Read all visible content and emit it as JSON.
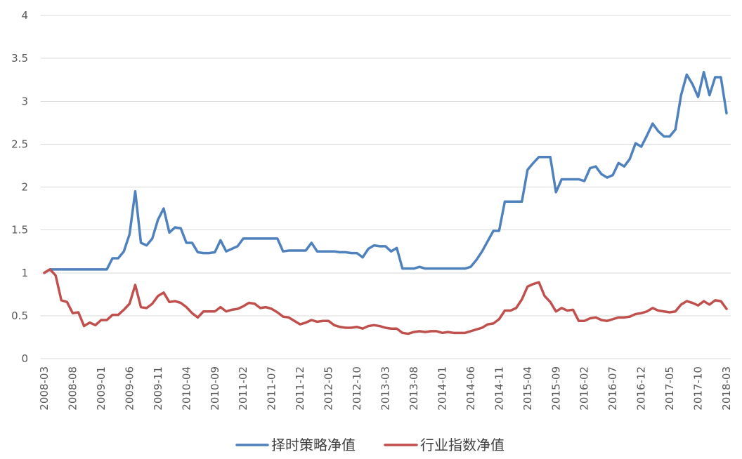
{
  "chart_data": {
    "type": "line",
    "x": [
      "2008-03",
      "2008-04",
      "2008-05",
      "2008-06",
      "2008-07",
      "2008-08",
      "2008-09",
      "2008-10",
      "2008-11",
      "2008-12",
      "2009-01",
      "2009-02",
      "2009-03",
      "2009-04",
      "2009-05",
      "2009-06",
      "2009-07",
      "2009-08",
      "2009-09",
      "2009-10",
      "2009-11",
      "2009-12",
      "2010-01",
      "2010-02",
      "2010-03",
      "2010-04",
      "2010-05",
      "2010-06",
      "2010-07",
      "2010-08",
      "2010-09",
      "2010-10",
      "2010-11",
      "2010-12",
      "2011-01",
      "2011-02",
      "2011-03",
      "2011-04",
      "2011-05",
      "2011-06",
      "2011-07",
      "2011-08",
      "2011-09",
      "2011-10",
      "2011-11",
      "2011-12",
      "2012-01",
      "2012-02",
      "2012-03",
      "2012-04",
      "2012-05",
      "2012-06",
      "2012-07",
      "2012-08",
      "2012-09",
      "2012-10",
      "2012-11",
      "2012-12",
      "2013-01",
      "2013-02",
      "2013-03",
      "2013-04",
      "2013-05",
      "2013-06",
      "2013-07",
      "2013-08",
      "2013-09",
      "2013-10",
      "2013-11",
      "2013-12",
      "2014-01",
      "2014-02",
      "2014-03",
      "2014-04",
      "2014-05",
      "2014-06",
      "2014-07",
      "2014-08",
      "2014-09",
      "2014-10",
      "2014-11",
      "2014-12",
      "2015-01",
      "2015-02",
      "2015-03",
      "2015-04",
      "2015-05",
      "2015-06",
      "2015-07",
      "2015-08",
      "2015-09",
      "2015-10",
      "2015-11",
      "2015-12",
      "2016-01",
      "2016-02",
      "2016-03",
      "2016-04",
      "2016-05",
      "2016-06",
      "2016-07",
      "2016-08",
      "2016-09",
      "2016-10",
      "2016-11",
      "2016-12",
      "2017-01",
      "2017-02",
      "2017-03",
      "2017-04",
      "2017-05",
      "2017-06",
      "2017-07",
      "2017-08",
      "2017-09",
      "2017-10",
      "2017-11",
      "2017-12",
      "2018-01",
      "2018-02",
      "2018-03"
    ],
    "xticks": [
      "2008-03",
      "2008-08",
      "2009-01",
      "2009-06",
      "2009-11",
      "2010-04",
      "2010-09",
      "2011-02",
      "2011-07",
      "2011-12",
      "2012-05",
      "2012-10",
      "2013-03",
      "2013-08",
      "2014-01",
      "2014-06",
      "2014-11",
      "2015-04",
      "2015-09",
      "2016-02",
      "2016-07",
      "2016-12",
      "2017-05",
      "2017-10",
      "2018-03"
    ],
    "yticks": [
      0,
      0.5,
      1,
      1.5,
      2,
      2.5,
      3,
      3.5,
      4
    ],
    "ylim": [
      0,
      4
    ],
    "grid": true,
    "legend_position": "bottom",
    "series": [
      {
        "name": "择时策略净值",
        "color": "#4F81BD",
        "values": [
          1.0,
          1.04,
          1.04,
          1.04,
          1.04,
          1.04,
          1.04,
          1.04,
          1.04,
          1.04,
          1.04,
          1.04,
          1.17,
          1.17,
          1.25,
          1.45,
          1.95,
          1.35,
          1.32,
          1.4,
          1.62,
          1.75,
          1.47,
          1.53,
          1.52,
          1.35,
          1.35,
          1.24,
          1.23,
          1.23,
          1.24,
          1.38,
          1.25,
          1.28,
          1.31,
          1.4,
          1.4,
          1.4,
          1.4,
          1.4,
          1.4,
          1.4,
          1.25,
          1.26,
          1.26,
          1.26,
          1.26,
          1.35,
          1.25,
          1.25,
          1.25,
          1.25,
          1.24,
          1.24,
          1.23,
          1.23,
          1.18,
          1.28,
          1.32,
          1.31,
          1.31,
          1.25,
          1.29,
          1.05,
          1.05,
          1.05,
          1.07,
          1.05,
          1.05,
          1.05,
          1.05,
          1.05,
          1.05,
          1.05,
          1.05,
          1.07,
          1.15,
          1.25,
          1.37,
          1.49,
          1.49,
          1.83,
          1.83,
          1.83,
          1.83,
          2.2,
          2.28,
          2.35,
          2.35,
          2.35,
          1.94,
          2.09,
          2.09,
          2.09,
          2.09,
          2.07,
          2.22,
          2.24,
          2.15,
          2.11,
          2.14,
          2.28,
          2.24,
          2.33,
          2.51,
          2.47,
          2.6,
          2.74,
          2.65,
          2.59,
          2.59,
          2.67,
          3.07,
          3.31,
          3.2,
          3.05,
          3.34,
          3.07,
          3.28,
          3.28,
          2.86
        ]
      },
      {
        "name": "行业指数净值",
        "color": "#C0504D",
        "values": [
          1.0,
          1.04,
          0.97,
          0.68,
          0.66,
          0.53,
          0.54,
          0.38,
          0.42,
          0.39,
          0.45,
          0.45,
          0.51,
          0.51,
          0.57,
          0.64,
          0.86,
          0.6,
          0.59,
          0.64,
          0.73,
          0.77,
          0.66,
          0.67,
          0.65,
          0.6,
          0.53,
          0.48,
          0.55,
          0.55,
          0.55,
          0.6,
          0.55,
          0.57,
          0.58,
          0.61,
          0.65,
          0.64,
          0.59,
          0.6,
          0.58,
          0.54,
          0.49,
          0.48,
          0.44,
          0.4,
          0.42,
          0.45,
          0.43,
          0.44,
          0.44,
          0.39,
          0.37,
          0.36,
          0.36,
          0.37,
          0.35,
          0.38,
          0.39,
          0.38,
          0.36,
          0.35,
          0.35,
          0.3,
          0.29,
          0.31,
          0.32,
          0.31,
          0.32,
          0.32,
          0.3,
          0.31,
          0.3,
          0.3,
          0.3,
          0.32,
          0.34,
          0.36,
          0.4,
          0.41,
          0.46,
          0.56,
          0.56,
          0.59,
          0.69,
          0.84,
          0.87,
          0.89,
          0.73,
          0.66,
          0.55,
          0.59,
          0.56,
          0.57,
          0.44,
          0.44,
          0.47,
          0.48,
          0.45,
          0.44,
          0.46,
          0.48,
          0.48,
          0.49,
          0.52,
          0.53,
          0.55,
          0.59,
          0.56,
          0.55,
          0.54,
          0.55,
          0.63,
          0.67,
          0.65,
          0.62,
          0.67,
          0.63,
          0.68,
          0.67,
          0.58
        ]
      }
    ]
  }
}
